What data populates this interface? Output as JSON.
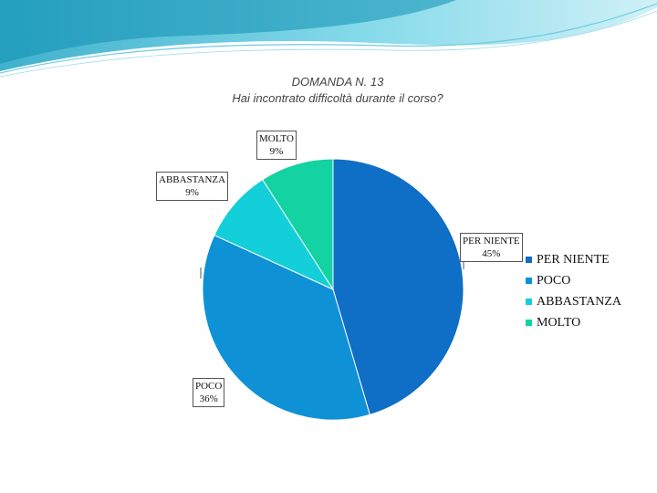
{
  "chart_data": {
    "type": "pie",
    "title": "DOMANDA N. 13",
    "subtitle": "Hai incontrato difficoltà durante il corso?",
    "slices": [
      {
        "label": "PER NIENTE",
        "value": 45,
        "percent_label": "45%",
        "color": "#0f6ec6"
      },
      {
        "label": "POCO",
        "value": 36,
        "percent_label": "36%",
        "color": "#0f91d6"
      },
      {
        "label": "ABBASTANZA",
        "value": 9,
        "percent_label": "9%",
        "color": "#12cfd9"
      },
      {
        "label": "MOLTO",
        "value": 9,
        "percent_label": "9%",
        "color": "#12d3a1"
      }
    ],
    "legend_position": "right"
  }
}
